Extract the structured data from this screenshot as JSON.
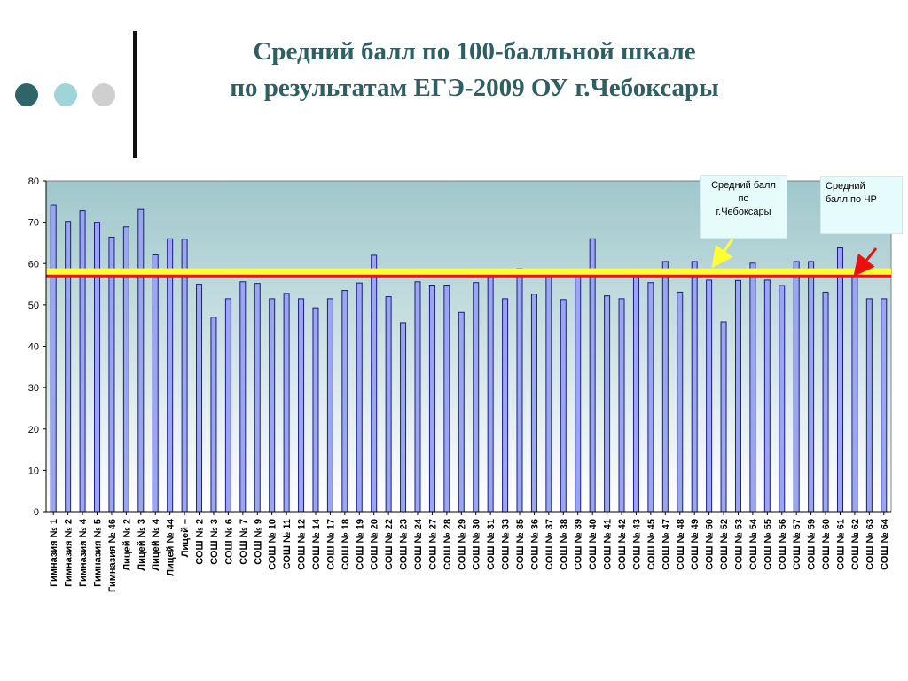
{
  "title": {
    "line1": "Средний балл по 100-балльной шкале",
    "line2": "по результатам ЕГЭ-2009 ОУ г.Чебоксары"
  },
  "colors": {
    "dot1": "#2f6468",
    "dot2": "#9fd4d8",
    "dot3": "#cfcfcf",
    "title": "#2f5f63",
    "bar_fill": "#9aa6ee",
    "bar_stroke": "#1c1c8a",
    "plot_bg_top": "#9fc7cb",
    "plot_bg_bottom": "#ffffff",
    "line_city": "#ffff33",
    "line_republic": "#ee1111"
  },
  "callouts": {
    "city": [
      "Средний балл",
      "по",
      "г.Чебоксары"
    ],
    "republic": [
      "Средний",
      "балл по ЧР"
    ]
  },
  "chart_data": {
    "type": "bar",
    "ylim": [
      0,
      80
    ],
    "yticks": [
      0,
      10,
      20,
      30,
      40,
      50,
      60,
      70,
      80
    ],
    "grid": false,
    "categories": [
      "Гимназия № 1",
      "Гимназия № 2",
      "Гимназия № 4",
      "Гимназия № 5",
      "Гимназия № 46",
      "Лицей № 2",
      "Лицей № 3",
      "Лицей № 4",
      "Лицей № 44",
      "Лицей –",
      "СОШ № 2",
      "СОШ № 3",
      "СОШ № 6",
      "СОШ № 7",
      "СОШ № 9",
      "СОШ № 10",
      "СОШ № 11",
      "СОШ № 12",
      "СОШ № 14",
      "СОШ № 17",
      "СОШ № 18",
      "СОШ № 19",
      "СОШ № 20",
      "СОШ № 22",
      "СОШ № 23",
      "СОШ № 24",
      "СОШ № 27",
      "СОШ № 28",
      "СОШ № 29",
      "СОШ № 30",
      "СОШ № 31",
      "СОШ № 33",
      "СОШ № 35",
      "СОШ № 36",
      "СОШ № 37",
      "СОШ № 38",
      "СОШ № 39",
      "СОШ № 40",
      "СОШ № 41",
      "СОШ № 42",
      "СОШ № 43",
      "СОШ № 45",
      "СОШ № 47",
      "СОШ № 48",
      "СОШ № 49",
      "СОШ № 50",
      "СОШ № 52",
      "СОШ № 53",
      "СОШ № 54",
      "СОШ № 55",
      "СОШ № 56",
      "СОШ № 57",
      "СОШ № 59",
      "СОШ № 60",
      "СОШ № 61",
      "СОШ № 62",
      "СОШ № 63",
      "СОШ № 64"
    ],
    "values": [
      74.2,
      70.2,
      72.8,
      70.0,
      66.4,
      68.9,
      73.1,
      62.1,
      66.0,
      65.9,
      55.0,
      47.0,
      51.5,
      55.6,
      55.2,
      51.5,
      52.8,
      51.5,
      49.3,
      51.5,
      53.5,
      55.3,
      62.0,
      52.0,
      45.7,
      55.6,
      54.8,
      54.8,
      48.2,
      55.4,
      58.0,
      51.5,
      58.8,
      52.6,
      56.9,
      51.3,
      57.0,
      66.0,
      52.2,
      51.5,
      57.4,
      55.4,
      60.5,
      53.1,
      60.5,
      56.0,
      45.9,
      55.9,
      60.1,
      56.0,
      54.7,
      60.5,
      60.5,
      53.1,
      63.8,
      57.0,
      51.5,
      51.5
    ],
    "reference_lines": [
      {
        "name": "Средний балл по г.Чебоксары",
        "value": 58.0
      },
      {
        "name": "Средний балл по ЧР",
        "value": 57.0
      }
    ]
  }
}
